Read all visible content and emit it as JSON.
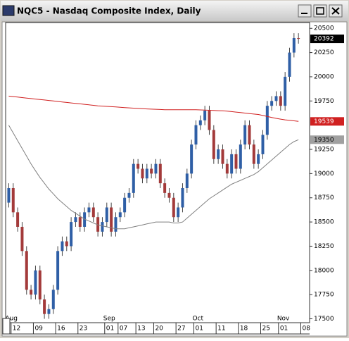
{
  "chart_data": {
    "type": "candlestick",
    "title": "NQC5 - Nasdaq Composite Index, Daily",
    "up_color": "#2f5fa6",
    "down_color": "#a33a3a",
    "wick_color": "#444444",
    "open": [
      18700,
      18850,
      18600,
      18450,
      18200,
      17800,
      17750,
      18000,
      17700,
      17550,
      17600,
      17800,
      18200,
      18300,
      18250,
      18500,
      18550,
      18450,
      18600,
      18650,
      18550,
      18400,
      18500,
      18650,
      18400,
      18550,
      18600,
      18750,
      18800,
      19100,
      19050,
      18950,
      19050,
      19000,
      19100,
      18900,
      18800,
      18750,
      18550,
      18650,
      18850,
      19000,
      19300,
      19500,
      19550,
      19650,
      19450,
      19150,
      19250,
      19100,
      19000,
      19200,
      19050,
      19300,
      19500,
      19300,
      19100,
      19200,
      19400,
      19700,
      19750,
      19800,
      19700,
      20000,
      20250,
      20400
    ],
    "high": [
      18900,
      18900,
      18650,
      18500,
      18250,
      17850,
      18050,
      18050,
      17750,
      17650,
      17850,
      18250,
      18350,
      18350,
      18550,
      18600,
      18600,
      18650,
      18700,
      18700,
      18600,
      18550,
      18700,
      18700,
      18600,
      18650,
      18800,
      18850,
      19150,
      19150,
      19100,
      19100,
      19100,
      19150,
      19150,
      18950,
      18850,
      18800,
      18700,
      18900,
      19050,
      19350,
      19550,
      19600,
      19700,
      19700,
      19500,
      19300,
      19300,
      19150,
      19250,
      19250,
      19350,
      19550,
      19550,
      19350,
      19250,
      19450,
      19750,
      19800,
      19850,
      19850,
      20050,
      20300,
      20450,
      20450
    ],
    "low": [
      18650,
      18550,
      18400,
      18150,
      17750,
      17700,
      17700,
      17650,
      17500,
      17500,
      17550,
      17750,
      18150,
      18200,
      18200,
      18450,
      18400,
      18400,
      18550,
      18500,
      18350,
      18350,
      18450,
      18350,
      18350,
      18500,
      18550,
      18700,
      18750,
      19000,
      18900,
      18900,
      18950,
      18950,
      18850,
      18750,
      18700,
      18500,
      18500,
      18600,
      18800,
      18950,
      19250,
      19450,
      19500,
      19400,
      19100,
      19100,
      19050,
      18950,
      18950,
      19000,
      19000,
      19250,
      19250,
      19050,
      19050,
      19150,
      19350,
      19650,
      19700,
      19650,
      19650,
      19950,
      20200,
      20342
    ],
    "close": [
      18850,
      18600,
      18450,
      18200,
      17800,
      17750,
      18000,
      17700,
      17550,
      17600,
      17800,
      18200,
      18300,
      18250,
      18500,
      18550,
      18450,
      18600,
      18650,
      18550,
      18400,
      18500,
      18650,
      18400,
      18550,
      18600,
      18750,
      18800,
      19100,
      19050,
      18950,
      19050,
      19000,
      19100,
      18900,
      18800,
      18750,
      18550,
      18650,
      18850,
      19000,
      19300,
      19500,
      19550,
      19650,
      19450,
      19150,
      19250,
      19100,
      19000,
      19200,
      19050,
      19300,
      19500,
      19300,
      19100,
      19200,
      19400,
      19700,
      19750,
      19800,
      19700,
      20000,
      20250,
      20400,
      20392
    ],
    "lines": [
      {
        "color": "#d02020",
        "badge_color": "#d02020",
        "values": [
          19800,
          19795,
          19790,
          19785,
          19780,
          19775,
          19770,
          19765,
          19760,
          19755,
          19750,
          19745,
          19740,
          19735,
          19730,
          19725,
          19720,
          19715,
          19710,
          19705,
          19700,
          19697,
          19694,
          19691,
          19688,
          19685,
          19682,
          19679,
          19676,
          19673,
          19670,
          19668,
          19666,
          19664,
          19662,
          19660,
          19660,
          19660,
          19660,
          19660,
          19660,
          19660,
          19660,
          19658,
          19656,
          19654,
          19652,
          19650,
          19648,
          19645,
          19640,
          19635,
          19630,
          19625,
          19620,
          19615,
          19610,
          19600,
          19590,
          19580,
          19570,
          19562,
          19555,
          19550,
          19545,
          19539
        ]
      },
      {
        "color": "#808080",
        "badge_color": "#a0a0a0",
        "values": [
          19500,
          19420,
          19340,
          19260,
          19180,
          19100,
          19030,
          18960,
          18900,
          18840,
          18790,
          18740,
          18700,
          18660,
          18620,
          18590,
          18560,
          18530,
          18510,
          18490,
          18470,
          18460,
          18450,
          18440,
          18430,
          18430,
          18430,
          18440,
          18450,
          18460,
          18470,
          18480,
          18490,
          18500,
          18500,
          18500,
          18500,
          18490,
          18490,
          18500,
          18540,
          18580,
          18620,
          18660,
          18700,
          18740,
          18770,
          18800,
          18830,
          18860,
          18890,
          18910,
          18930,
          18950,
          18970,
          18990,
          19020,
          19060,
          19100,
          19140,
          19180,
          19220,
          19260,
          19300,
          19330,
          19350
        ]
      }
    ],
    "xlim": [
      -0.7,
      67.5
    ],
    "xticks": [
      {
        "value": 1,
        "label": "12"
      },
      {
        "value": 6,
        "label": "09"
      },
      {
        "value": 11,
        "label": "16"
      },
      {
        "value": 16,
        "label": "23"
      },
      {
        "value": 22,
        "label": "01"
      },
      {
        "value": 25,
        "label": "07"
      },
      {
        "value": 29,
        "label": "13"
      },
      {
        "value": 33,
        "label": "20"
      },
      {
        "value": 38,
        "label": "27"
      },
      {
        "value": 42,
        "label": "01"
      },
      {
        "value": 47,
        "label": "11"
      },
      {
        "value": 52,
        "label": "18"
      },
      {
        "value": 57,
        "label": "25"
      },
      {
        "value": 61,
        "label": "01"
      },
      {
        "value": 66,
        "label": "08"
      }
    ],
    "months": [
      {
        "value": 0,
        "label": "Aug"
      },
      {
        "value": 22,
        "label": "Sep"
      },
      {
        "value": 42,
        "label": "Oct"
      },
      {
        "value": 61,
        "label": "Nov"
      }
    ],
    "ylim": [
      17460,
      20560
    ],
    "yticks": [
      17500,
      17750,
      18000,
      18250,
      18500,
      18750,
      19000,
      19250,
      19750,
      20000,
      20250,
      20500
    ]
  }
}
